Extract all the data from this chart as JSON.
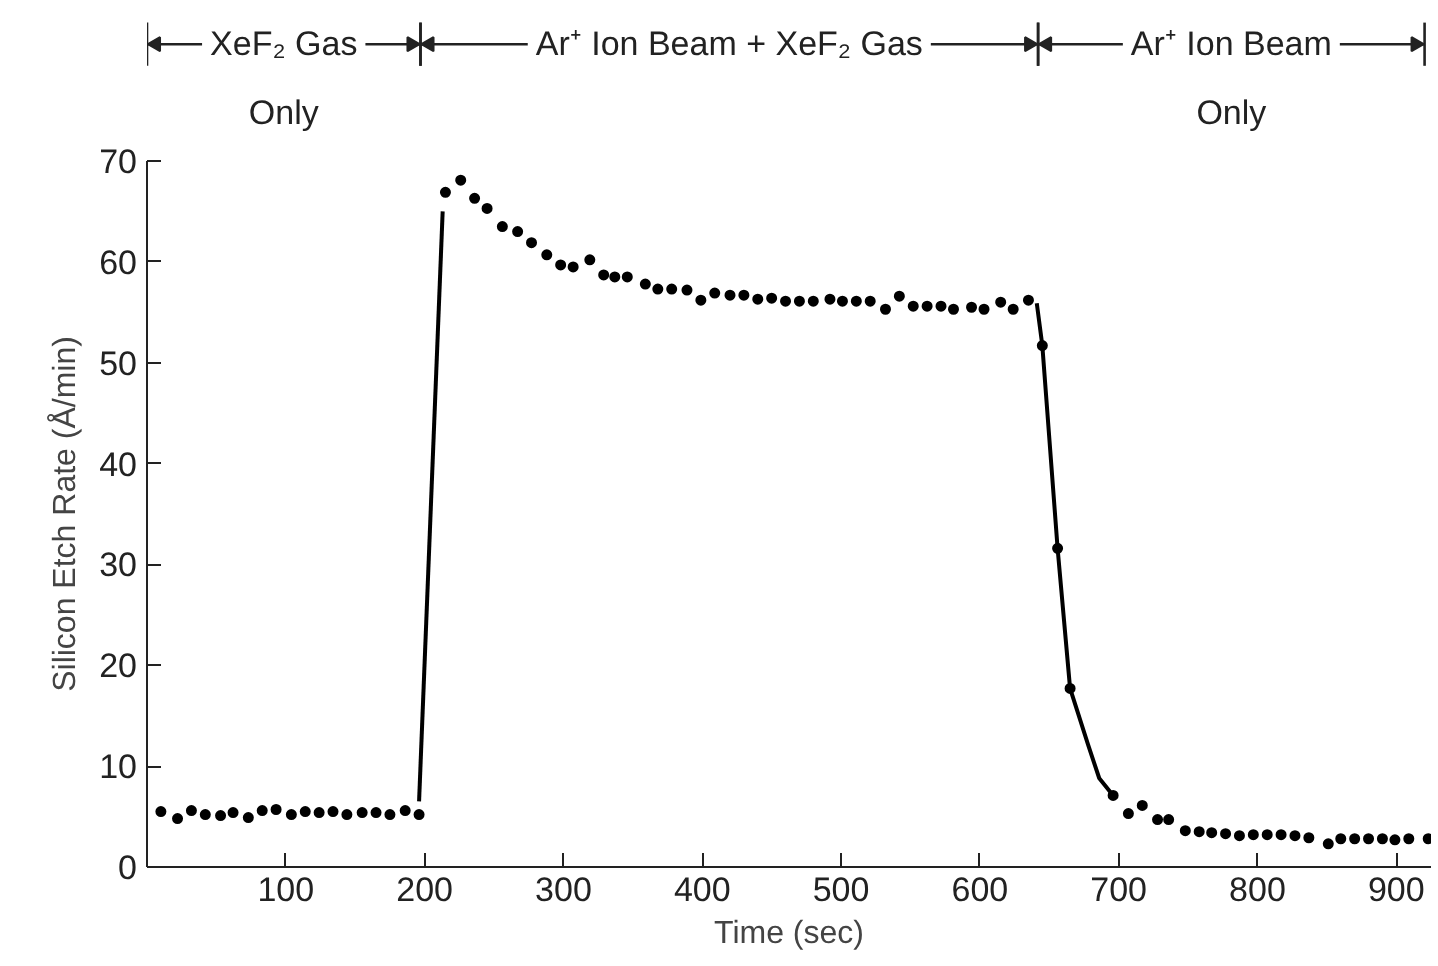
{
  "chart_data": {
    "type": "scatter",
    "xlabel": "Time (sec)",
    "ylabel": "Silicon Etch Rate (Å/min)",
    "xlim": [
      0,
      925
    ],
    "ylim": [
      0,
      70
    ],
    "xticks": [
      100,
      200,
      300,
      400,
      500,
      600,
      700,
      800,
      900
    ],
    "yticks": [
      0,
      10,
      20,
      30,
      40,
      50,
      60,
      70
    ],
    "annotations": [
      "XeF₂ Gas\nOnly",
      "Ar⁺ Ion Beam + XeF₂ Gas",
      "Ar⁺ Ion Beam\nOnly"
    ],
    "series": [
      {
        "color": "#000000",
        "marker": "circle",
        "x": [
          10,
          22,
          32,
          42,
          53,
          62,
          73,
          83,
          93,
          104,
          114,
          124,
          134,
          144,
          155,
          165,
          175,
          186,
          196,
          215,
          226,
          236,
          245,
          256,
          267,
          277,
          288,
          298,
          307,
          319,
          329,
          337,
          346,
          359,
          368,
          378,
          389,
          399,
          409,
          420,
          430,
          440,
          450,
          460,
          470,
          480,
          492,
          501,
          511,
          521,
          532,
          542,
          552,
          562,
          572,
          581,
          594,
          603,
          615,
          624,
          635,
          645,
          656,
          665,
          696,
          707,
          717,
          728,
          736,
          748,
          758,
          767,
          777,
          787,
          797,
          807,
          817,
          827,
          837,
          851,
          860,
          870,
          880,
          890,
          899,
          909,
          923
        ],
        "values": [
          5.5,
          4.8,
          5.6,
          5.2,
          5.1,
          5.4,
          4.9,
          5.6,
          5.7,
          5.2,
          5.5,
          5.4,
          5.5,
          5.2,
          5.4,
          5.4,
          5.2,
          5.6,
          5.2,
          66.9,
          68.1,
          66.3,
          65.3,
          63.5,
          63,
          61.9,
          60.7,
          59.7,
          59.5,
          60.2,
          58.7,
          58.5,
          58.5,
          57.8,
          57.3,
          57.3,
          57.2,
          56.2,
          56.9,
          56.7,
          56.7,
          56.3,
          56.4,
          56.1,
          56.1,
          56.1,
          56.3,
          56.1,
          56.1,
          56.1,
          55.3,
          56.6,
          55.6,
          55.6,
          55.6,
          55.3,
          55.5,
          55.3,
          56,
          55.3,
          56.2,
          51.7,
          31.6,
          17.7,
          7.1,
          5.3,
          6.1,
          4.7,
          4.7,
          3.6,
          3.5,
          3.4,
          3.3,
          3.1,
          3.2,
          3.2,
          3.2,
          3.1,
          2.9,
          2.3,
          2.8,
          2.8,
          2.8,
          2.8,
          2.7,
          2.8,
          2.8
        ]
      },
      {
        "type": "line",
        "color": "#000000",
        "line_style": "solid",
        "x": [
          196,
          213
        ],
        "values": [
          6.5,
          65
        ]
      },
      {
        "type": "line",
        "color": "#000000",
        "line_style": "solid",
        "x": [
          641,
          645,
          656,
          665,
          678,
          686,
          696
        ],
        "values": [
          55.9,
          51.7,
          31.6,
          17.7,
          12.1,
          8.8,
          7.1
        ]
      }
    ]
  }
}
